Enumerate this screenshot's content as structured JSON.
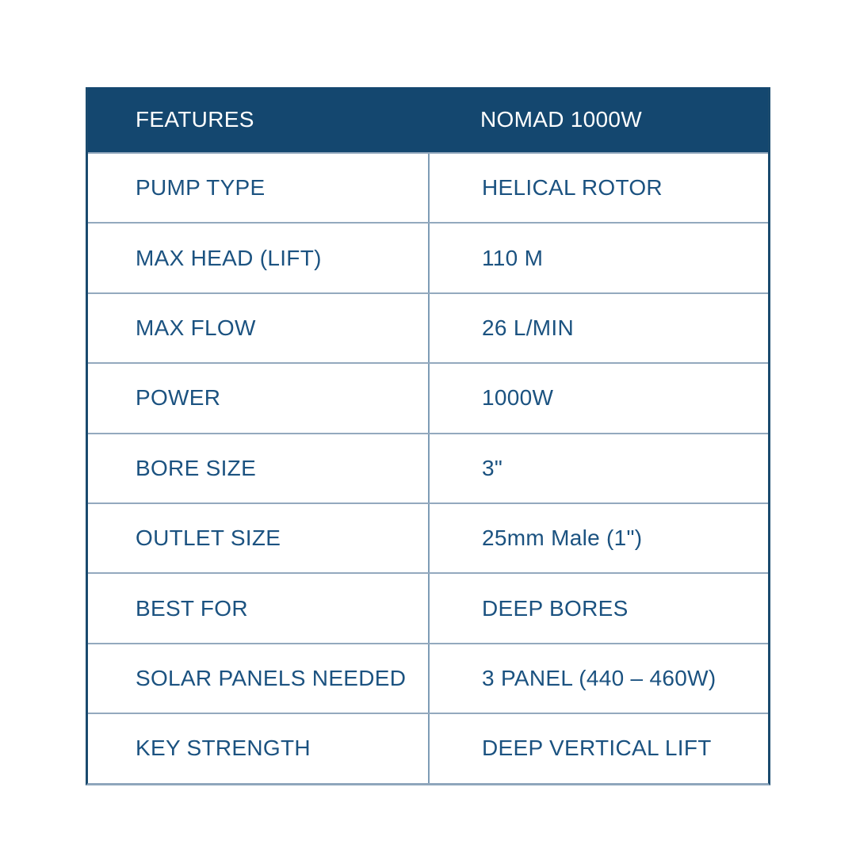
{
  "chart_data": {
    "type": "table",
    "columns": [
      "FEATURES",
      "NOMAD 1000W"
    ],
    "rows": [
      {
        "label": "PUMP TYPE",
        "value": "HELICAL ROTOR"
      },
      {
        "label": "MAX HEAD (LIFT)",
        "value": "110 M"
      },
      {
        "label": "MAX FLOW",
        "value": "26 L/MIN"
      },
      {
        "label": "POWER",
        "value": "1000W"
      },
      {
        "label": "BORE SIZE",
        "value": "3\""
      },
      {
        "label": "OUTLET SIZE",
        "value": "25mm Male (1\")"
      },
      {
        "label": "BEST FOR",
        "value": "DEEP BORES"
      },
      {
        "label": "SOLAR PANELS NEEDED",
        "value": "3 PANEL (440 – 460W)"
      },
      {
        "label": "KEY STRENGTH",
        "value": "DEEP VERTICAL LIFT"
      }
    ],
    "layout": {
      "legend": "none",
      "grid": "on",
      "header_position": "top"
    }
  },
  "colors": {
    "header_bg": "#14476f",
    "header_text": "#ffffff",
    "body_text": "#1b5280",
    "row_divider": "#93a9be",
    "column_divider": "#7e9cb6",
    "outer_border": "#1a4a6e",
    "bottom_border": "#8fa6bc",
    "page_bg": "#ffffff"
  }
}
